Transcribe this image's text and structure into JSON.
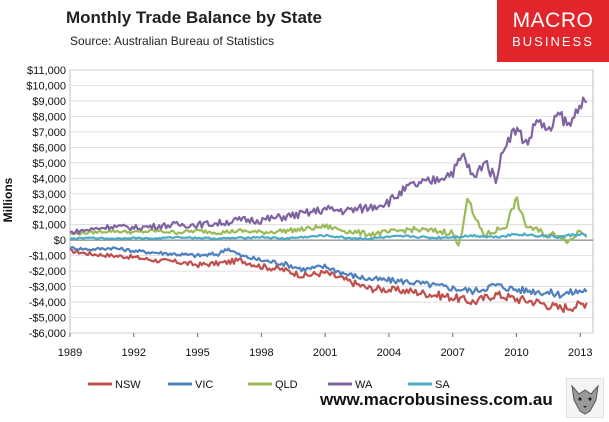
{
  "title": "Monthly Trade Balance by State",
  "subtitle": "Source: Australian Bureau of Statistics",
  "logo": {
    "line1": "MACRO",
    "line2": "BUSINESS"
  },
  "url": "www.macrobusiness.com.au",
  "colors": {
    "NSW": "#c0504d",
    "VIC": "#4f81bd",
    "QLD": "#9bbb59",
    "WA": "#8064a2",
    "SA": "#4bacc6"
  },
  "chart_data": {
    "type": "line",
    "title": "Monthly Trade Balance by State",
    "xlabel": "",
    "ylabel": "Millions",
    "xlim": [
      1989,
      2013.6
    ],
    "ylim": [
      -6000,
      11000
    ],
    "y_ticks": [
      11000,
      10000,
      9000,
      8000,
      7000,
      6000,
      5000,
      4000,
      3000,
      2000,
      1000,
      0,
      -1000,
      -2000,
      -3000,
      -4000,
      -5000,
      -6000
    ],
    "y_tick_labels": [
      "$11,000",
      "$10,000",
      "$9,000",
      "$8,000",
      "$7,000",
      "$6,000",
      "$5,000",
      "$4,000",
      "$3,000",
      "$2,000",
      "$1,000",
      "$0",
      "-$1,000",
      "-$2,000",
      "-$3,000",
      "-$4,000",
      "-$5,000",
      "-$6,000"
    ],
    "x_ticks": [
      1989,
      1992,
      1995,
      1998,
      2001,
      2004,
      2007,
      2010,
      2013
    ],
    "x_tick_labels": [
      "1989",
      "1992",
      "1995",
      "1998",
      "2001",
      "2004",
      "2007",
      "2010",
      "2013"
    ],
    "grid": "horizontal",
    "legend": "bottom",
    "series": [
      {
        "name": "NSW",
        "x": [
          1989,
          1990,
          1991,
          1992,
          1993,
          1994,
          1995,
          1996,
          1997,
          1998,
          1999,
          2000,
          2001,
          2002,
          2003,
          2004,
          2005,
          2006,
          2007,
          2008,
          2009,
          2010,
          2011,
          2012,
          2013,
          2013.3
        ],
        "values": [
          -700,
          -900,
          -1000,
          -1100,
          -1300,
          -1400,
          -1600,
          -1500,
          -1300,
          -1700,
          -1900,
          -2300,
          -2100,
          -2600,
          -3100,
          -3200,
          -3300,
          -3500,
          -3700,
          -4000,
          -3500,
          -3800,
          -4000,
          -4400,
          -4200,
          -4000
        ]
      },
      {
        "name": "VIC",
        "x": [
          1989,
          1990,
          1991,
          1992,
          1993,
          1994,
          1995,
          1996,
          1996.4,
          1997,
          1998,
          1999,
          2000,
          2001,
          2002,
          2003,
          2004,
          2005,
          2006,
          2007,
          2008,
          2009,
          2010,
          2011,
          2012,
          2013,
          2013.3
        ],
        "values": [
          -500,
          -600,
          -500,
          -700,
          -800,
          -900,
          -1000,
          -900,
          -500,
          -1000,
          -1300,
          -1500,
          -1900,
          -1700,
          -2200,
          -2500,
          -2600,
          -2700,
          -2900,
          -3100,
          -3300,
          -2900,
          -3200,
          -3300,
          -3500,
          -3300,
          -3200
        ]
      },
      {
        "name": "QLD",
        "x": [
          1989,
          1990,
          1991,
          1992,
          1993,
          1994,
          1995,
          1996,
          1997,
          1998,
          1999,
          2000,
          2001,
          2002,
          2003,
          2004,
          2005,
          2006,
          2007,
          2007.3,
          2007.7,
          2008,
          2008.5,
          2009,
          2009.5,
          2010,
          2010.4,
          2011,
          2011.5,
          2012,
          2012.5,
          2013,
          2013.3
        ],
        "values": [
          400,
          500,
          600,
          500,
          600,
          500,
          600,
          500,
          600,
          500,
          600,
          700,
          900,
          600,
          400,
          500,
          700,
          600,
          500,
          -500,
          2900,
          1500,
          300,
          600,
          900,
          2700,
          1000,
          600,
          300,
          400,
          -100,
          700,
          400
        ]
      },
      {
        "name": "WA",
        "x": [
          1989,
          1990,
          1991,
          1992,
          1993,
          1994,
          1995,
          1996,
          1997,
          1998,
          1999,
          2000,
          2001,
          2002,
          2003,
          2004,
          2005,
          2006,
          2007,
          2007.5,
          2008,
          2008.5,
          2009,
          2009.5,
          2010,
          2010.5,
          2011,
          2011.5,
          2012,
          2012.5,
          2013,
          2013.3
        ],
        "values": [
          500,
          700,
          900,
          800,
          900,
          1000,
          1000,
          1100,
          1300,
          1300,
          1500,
          1700,
          2000,
          1900,
          2100,
          2500,
          3500,
          3800,
          4400,
          5500,
          3900,
          5200,
          3900,
          6400,
          7200,
          6200,
          7900,
          6900,
          8200,
          7300,
          9000,
          8600
        ]
      },
      {
        "name": "SA",
        "x": [
          1989,
          1990,
          1991,
          1992,
          1993,
          1994,
          1995,
          1996,
          1997,
          1998,
          1999,
          2000,
          2001,
          2002,
          2003,
          2004,
          2005,
          2006,
          2007,
          2008,
          2009,
          2010,
          2011,
          2012,
          2013,
          2013.3
        ],
        "values": [
          100,
          150,
          100,
          150,
          100,
          200,
          150,
          100,
          150,
          200,
          100,
          200,
          300,
          150,
          100,
          200,
          250,
          150,
          200,
          300,
          200,
          400,
          300,
          200,
          400,
          300
        ]
      }
    ]
  }
}
